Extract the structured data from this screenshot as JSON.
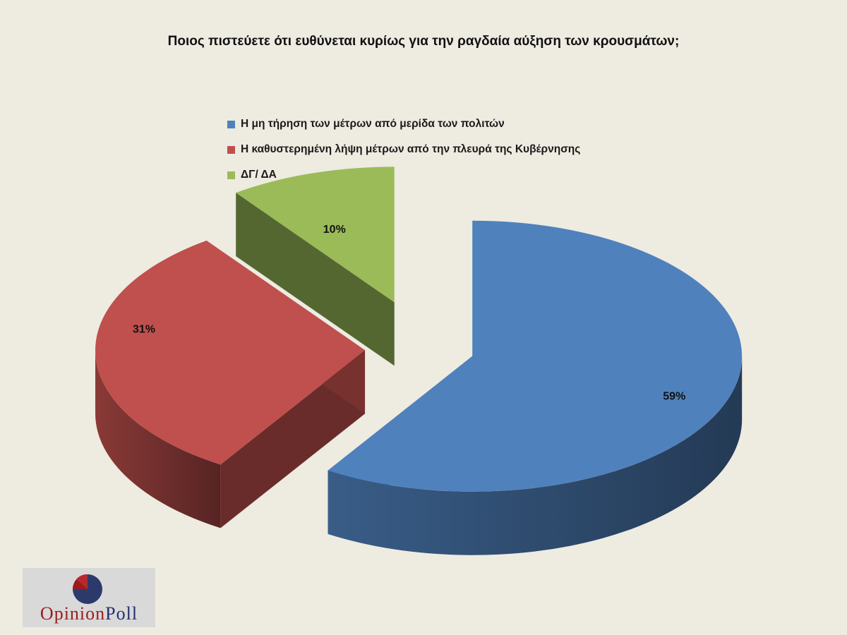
{
  "chart_data": {
    "type": "pie",
    "title": "Ποιος πιστεύετε ότι ευθύνεται κυρίως για την ραγδαία αύξηση των κρουσμάτων;",
    "categories": [
      "Η μη τήρηση των μέτρων από μερίδα των πολιτών",
      "Η καθυστερημένη λήψη μέτρων από την πλευρά της Κυβέρνησης",
      "ΔΓ/ ΔΑ"
    ],
    "values": [
      59,
      31,
      10
    ],
    "data_labels": [
      "59%",
      "31%",
      "10%"
    ],
    "colors": [
      "#4f81bd",
      "#c0504d",
      "#9bbb59"
    ],
    "legend_position": "top"
  },
  "logo": {
    "part1": "Opinion",
    "part2": "Poll"
  }
}
